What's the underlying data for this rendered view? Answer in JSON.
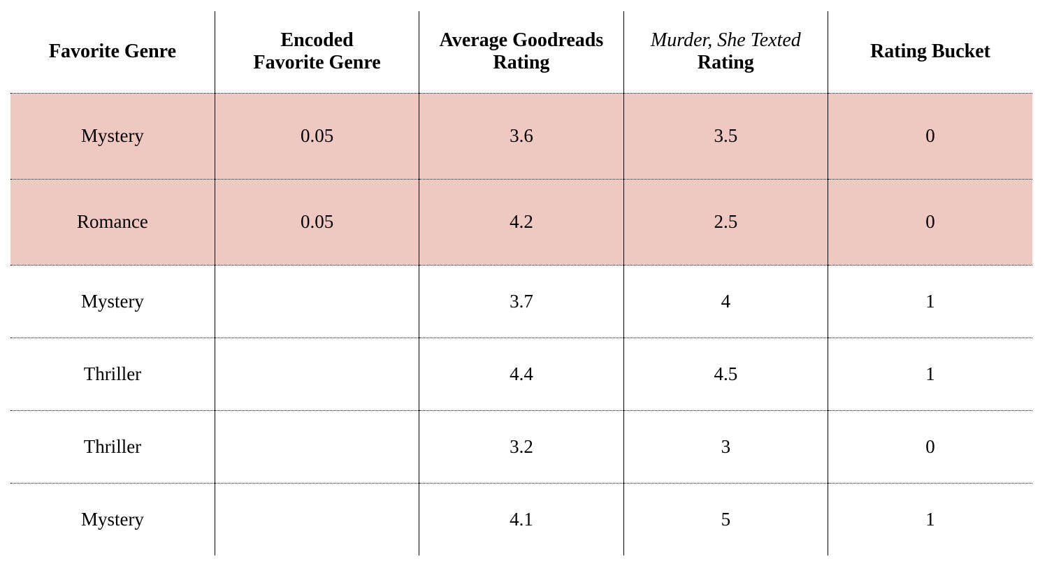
{
  "table": {
    "columns": [
      {
        "id": "favorite-genre",
        "label_lines": [
          "Favorite Genre"
        ]
      },
      {
        "id": "encoded-favorite-genre",
        "label_lines": [
          "Encoded",
          "Favorite Genre"
        ]
      },
      {
        "id": "average-goodreads-rating",
        "label_lines": [
          "Average Goodreads",
          "Rating"
        ]
      },
      {
        "id": "murder-she-texted-rating",
        "label_lines": [
          "Murder, She Texted",
          "Rating"
        ],
        "line1_italic": true
      },
      {
        "id": "rating-bucket",
        "label_lines": [
          "Rating Bucket"
        ]
      }
    ],
    "rows": [
      {
        "highlighted": true,
        "cells": [
          "Mystery",
          "0.05",
          "3.6",
          "3.5",
          "0"
        ]
      },
      {
        "highlighted": true,
        "cells": [
          "Romance",
          "0.05",
          "4.2",
          "2.5",
          "0"
        ]
      },
      {
        "highlighted": false,
        "cells": [
          "Mystery",
          "",
          "3.7",
          "4",
          "1"
        ]
      },
      {
        "highlighted": false,
        "cells": [
          "Thriller",
          "",
          "4.4",
          "4.5",
          "1"
        ]
      },
      {
        "highlighted": false,
        "cells": [
          "Thriller",
          "",
          "3.2",
          "3",
          "0"
        ]
      },
      {
        "highlighted": false,
        "cells": [
          "Mystery",
          "",
          "4.1",
          "5",
          "1"
        ]
      }
    ],
    "highlight_color": "#f0c8c2"
  },
  "chart_data": {
    "type": "table",
    "title": "",
    "columns": [
      "Favorite Genre",
      "Encoded Favorite Genre",
      "Average Goodreads Rating",
      "Murder, She Texted Rating",
      "Rating Bucket"
    ],
    "rows": [
      [
        "Mystery",
        "0.05",
        "3.6",
        "3.5",
        "0"
      ],
      [
        "Romance",
        "0.05",
        "4.2",
        "2.5",
        "0"
      ],
      [
        "Mystery",
        "",
        "3.7",
        "4",
        "1"
      ],
      [
        "Thriller",
        "",
        "4.4",
        "4.5",
        "1"
      ],
      [
        "Thriller",
        "",
        "3.2",
        "3",
        "0"
      ],
      [
        "Mystery",
        "",
        "4.1",
        "5",
        "1"
      ]
    ],
    "highlighted_row_indices": [
      0,
      1
    ],
    "layout": "highlighted rows have salmon-pink background; solid vertical column separators; dotted horizontal row separators; no outer border"
  }
}
